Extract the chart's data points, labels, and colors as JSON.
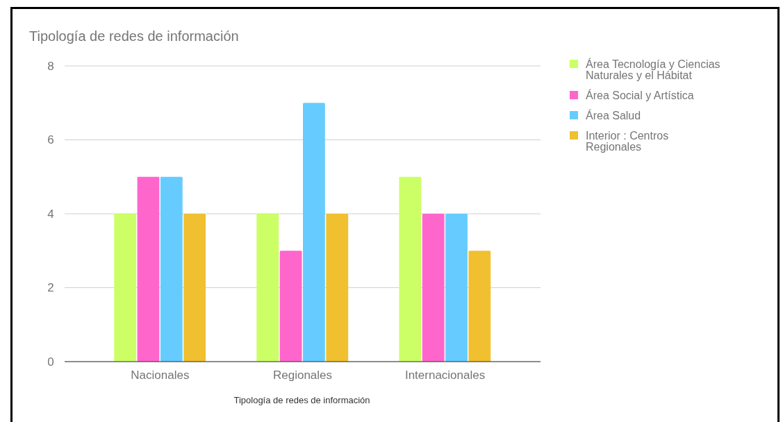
{
  "chart_data": {
    "type": "bar",
    "title": "Tipología de redes de información",
    "xlabel": "Tipología de redes de información",
    "categories": [
      "Nacionales",
      "Regionales",
      "Internacionales"
    ],
    "series": [
      {
        "name": "Área Tecnología y Ciencias Naturales y el Hábitat",
        "color": "#ccff66",
        "values": [
          4,
          4,
          5
        ]
      },
      {
        "name": "Área Social y Artística",
        "color": "#ff66cc",
        "values": [
          5,
          3,
          4
        ]
      },
      {
        "name": "Área Salud",
        "color": "#66ccff",
        "values": [
          5,
          7,
          4
        ]
      },
      {
        "name": "Interior : Centros Regionales",
        "color": "#f0c030",
        "values": [
          4,
          4,
          3
        ]
      }
    ],
    "ylim": [
      0,
      8
    ],
    "yticks": [
      0,
      2,
      4,
      6,
      8
    ],
    "grid": "y",
    "legend": "right"
  }
}
